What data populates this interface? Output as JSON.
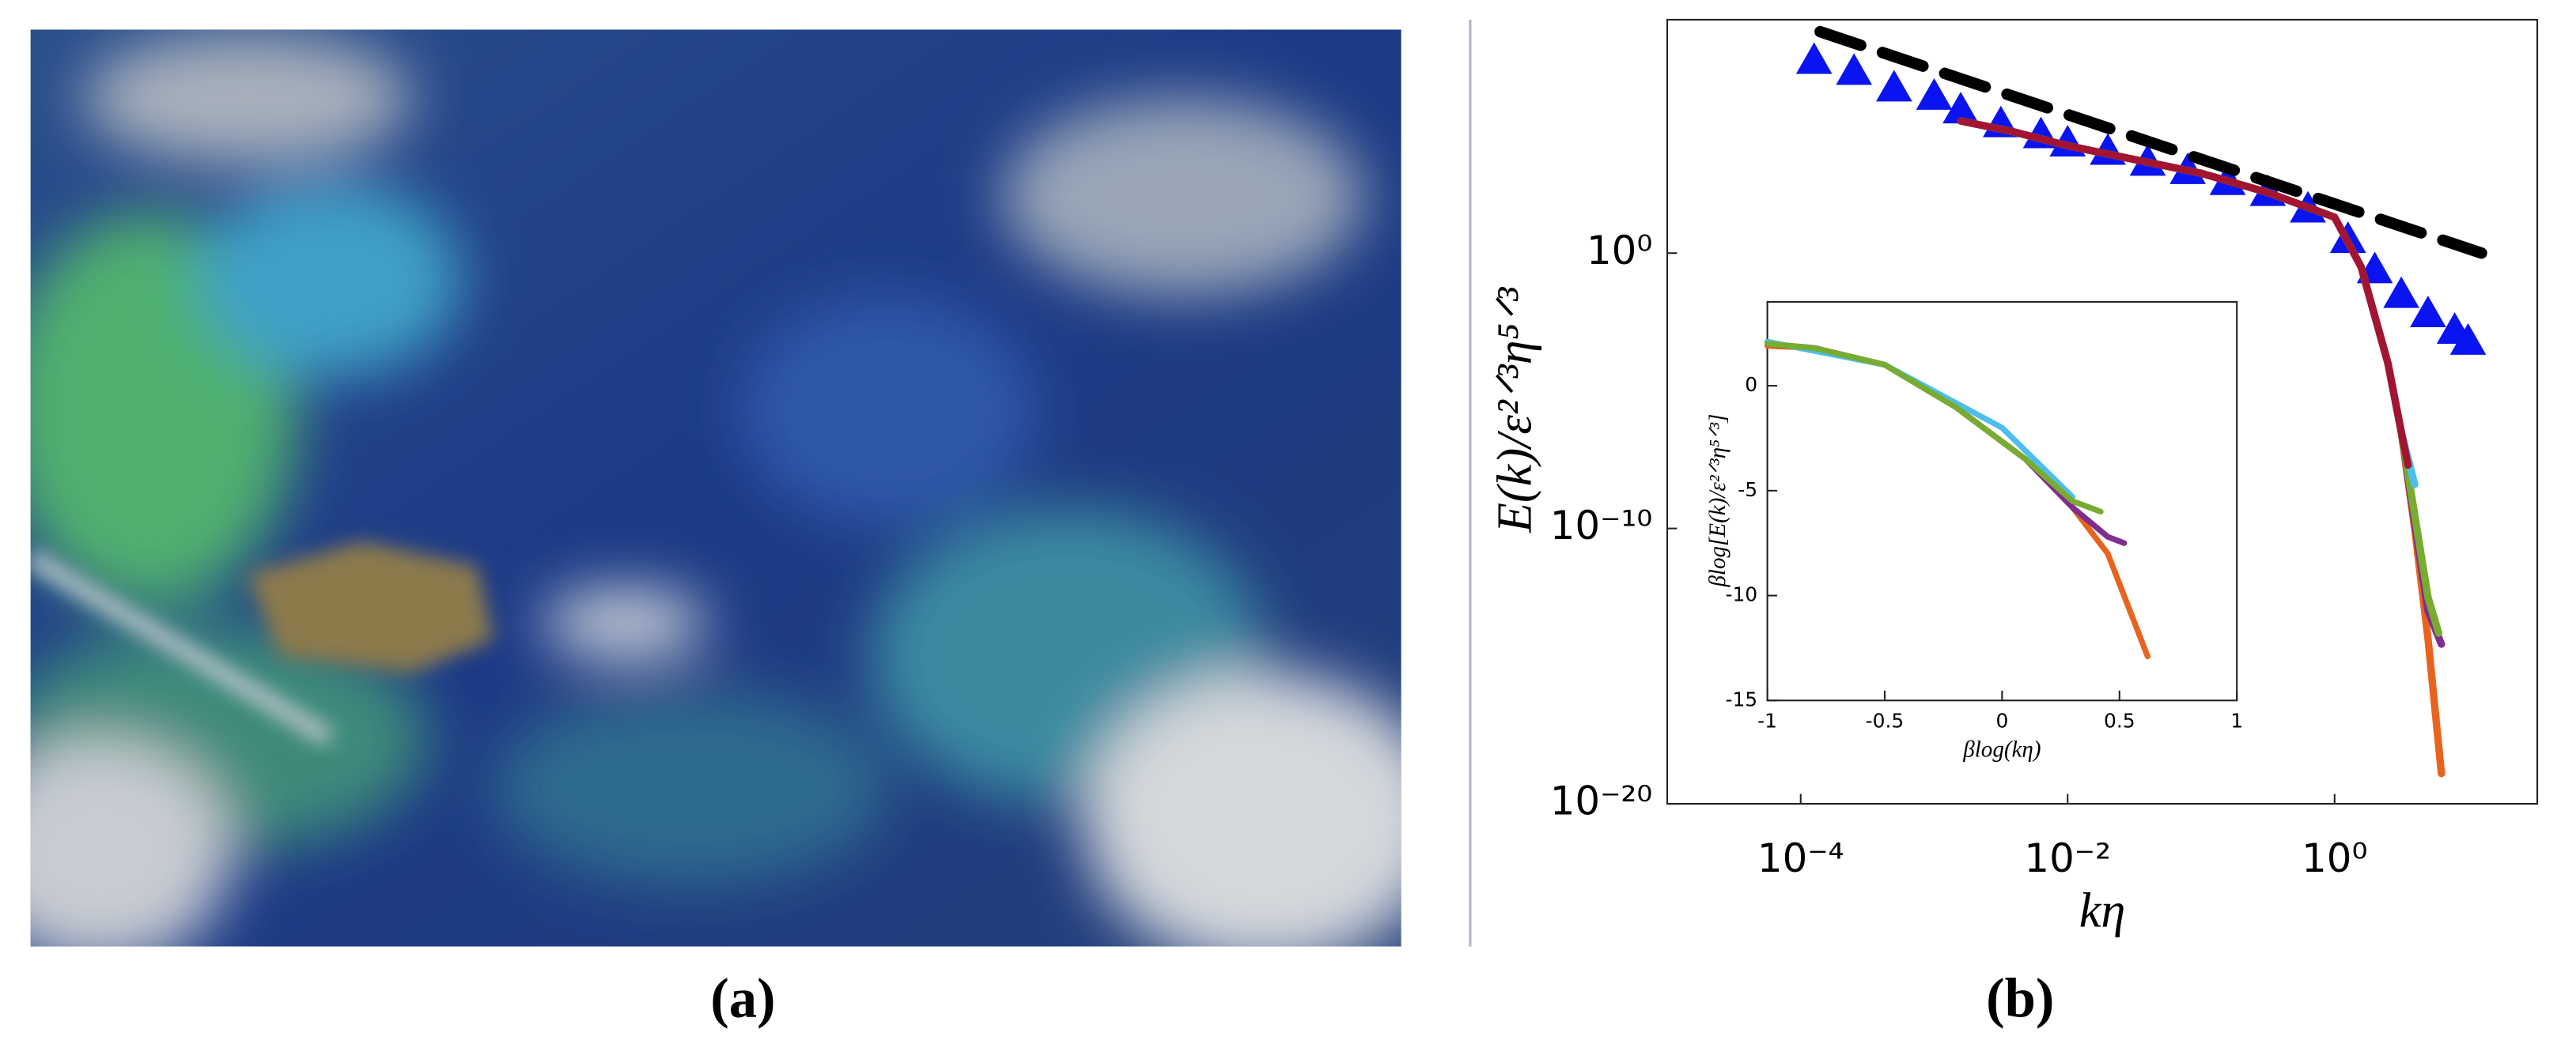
{
  "panel_labels": [
    "(a)",
    "(b)"
  ],
  "chart_data": [
    {
      "type": "line",
      "xlabel": "kη",
      "ylabel": "E(k)/ε²ᐟ³η⁵ᐟ³",
      "xscale": "log",
      "yscale": "log",
      "xlim": [
        1e-05,
        33
      ],
      "ylim": [
        1e-20,
        300000000
      ],
      "xticks": [
        {
          "value": 0.0001,
          "label": "10⁻⁴"
        },
        {
          "value": 0.01,
          "label": "10⁻²"
        },
        {
          "value": 1,
          "label": "10⁰"
        }
      ],
      "yticks": [
        {
          "value": 1e-20,
          "label": "10⁻²⁰"
        },
        {
          "value": 1e-10,
          "label": "10⁻¹⁰"
        },
        {
          "value": 1,
          "label": "10⁰"
        }
      ],
      "series": [
        {
          "marker": "triangle",
          "color": "#0a14f0",
          "x": [
            0.000126,
            0.000251,
            0.000501,
            0.001,
            0.00158,
            0.00316,
            0.00631,
            0.01,
            0.02,
            0.0398,
            0.0794,
            0.158,
            0.316,
            0.631,
            1.26,
            2,
            3.16,
            5.01,
            7.94,
            10
          ],
          "values": [
            10000000,
            4000000,
            1000000,
            500000,
            160000,
            50000,
            20000,
            10000,
            5000,
            2000,
            1000,
            400,
            160,
            40,
            3.16,
            0.25,
            0.0316,
            0.00631,
            0.00158,
            0.00063
          ]
        },
        {
          "style": "dashed",
          "color": "#000000",
          "x": [
            0.00014,
            12.6
          ],
          "values": [
            110000000,
            1
          ]
        },
        {
          "color": "#e8641e",
          "x": [
            0.00158,
            0.00398,
            0.01,
            0.0316,
            0.1,
            0.316,
            1,
            1.58,
            2.51,
            3.16,
            3.98,
            5.01,
            6.31
          ],
          "values": [
            63100,
            25100,
            7940,
            2510,
            794,
            158,
            20,
            0.316,
            0.0001,
            3.16e-07,
            1e-10,
            1e-14,
            1.26e-19
          ]
        },
        {
          "color": "#7e2f8e",
          "x": [
            0.00158,
            0.00398,
            0.01,
            0.0316,
            0.1,
            0.316,
            1,
            1.58,
            2.51,
            3.16,
            3.98,
            5.01,
            6.31
          ],
          "values": [
            63100,
            25100,
            7940,
            2510,
            794,
            158,
            20,
            0.316,
            0.0001,
            3.16e-07,
            1.58e-10,
            1e-13,
            6.3e-15
          ]
        },
        {
          "color": "#77ac30",
          "x": [
            0.00158,
            0.00398,
            0.01,
            0.0316,
            0.1,
            0.316,
            1,
            1.58,
            2.51,
            3.16,
            3.98,
            5.01,
            6.03
          ],
          "values": [
            63100,
            25100,
            7940,
            2510,
            794,
            158,
            20,
            0.316,
            0.0001,
            3.16e-07,
            3.16e-10,
            3.16e-13,
            1.58e-14
          ]
        },
        {
          "color": "#4dbeee",
          "x": [
            0.00158,
            0.00398,
            0.01,
            0.0316,
            0.1,
            0.316,
            1,
            1.58,
            2.51,
            3.16,
            3.98
          ],
          "values": [
            63100,
            25100,
            7940,
            2510,
            794,
            158,
            20,
            0.316,
            0.0001,
            3.16e-07,
            4e-09
          ]
        },
        {
          "color": "#a2142f",
          "x": [
            0.00158,
            0.00398,
            0.01,
            0.0316,
            0.1,
            0.316,
            1,
            1.58,
            2.51,
            3.16,
            3.55
          ],
          "values": [
            63100,
            25100,
            7940,
            2510,
            794,
            158,
            20,
            0.316,
            0.0001,
            3.16e-07,
            2e-08
          ]
        }
      ]
    },
    {
      "type": "line",
      "xlabel": "βlog(kη)",
      "ylabel": "βlog[E(k)/ε²ᐟ³η⁵ᐟ³]",
      "xlim": [
        -1,
        1
      ],
      "ylim": [
        -15,
        4
      ],
      "xticks": [
        -1,
        -0.5,
        0,
        0.5,
        1
      ],
      "yticks": [
        -15,
        -10,
        -5,
        0
      ],
      "series": [
        {
          "color": "#e8641e",
          "x": [
            -1,
            -0.8,
            -0.5,
            -0.2,
            0.1,
            0.3,
            0.45,
            0.62
          ],
          "values": [
            1.9,
            1.8,
            1,
            -1,
            -3.5,
            -5.8,
            -8,
            -12.9
          ]
        },
        {
          "color": "#7e2f8e",
          "x": [
            -1,
            -0.8,
            -0.5,
            -0.2,
            0.1,
            0.3,
            0.45,
            0.52
          ],
          "values": [
            2,
            1.8,
            1,
            -1,
            -3.5,
            -5.8,
            -7.2,
            -7.5
          ]
        },
        {
          "color": "#4dbeee",
          "x": [
            -1,
            -0.5,
            0,
            0.3
          ],
          "values": [
            2.1,
            1,
            -2,
            -5.3
          ]
        },
        {
          "color": "#77ac30",
          "x": [
            -1,
            -0.8,
            -0.5,
            -0.2,
            0.1,
            0.3,
            0.42
          ],
          "values": [
            2,
            1.8,
            1,
            -1,
            -3.5,
            -5.5,
            -6
          ]
        }
      ]
    }
  ]
}
